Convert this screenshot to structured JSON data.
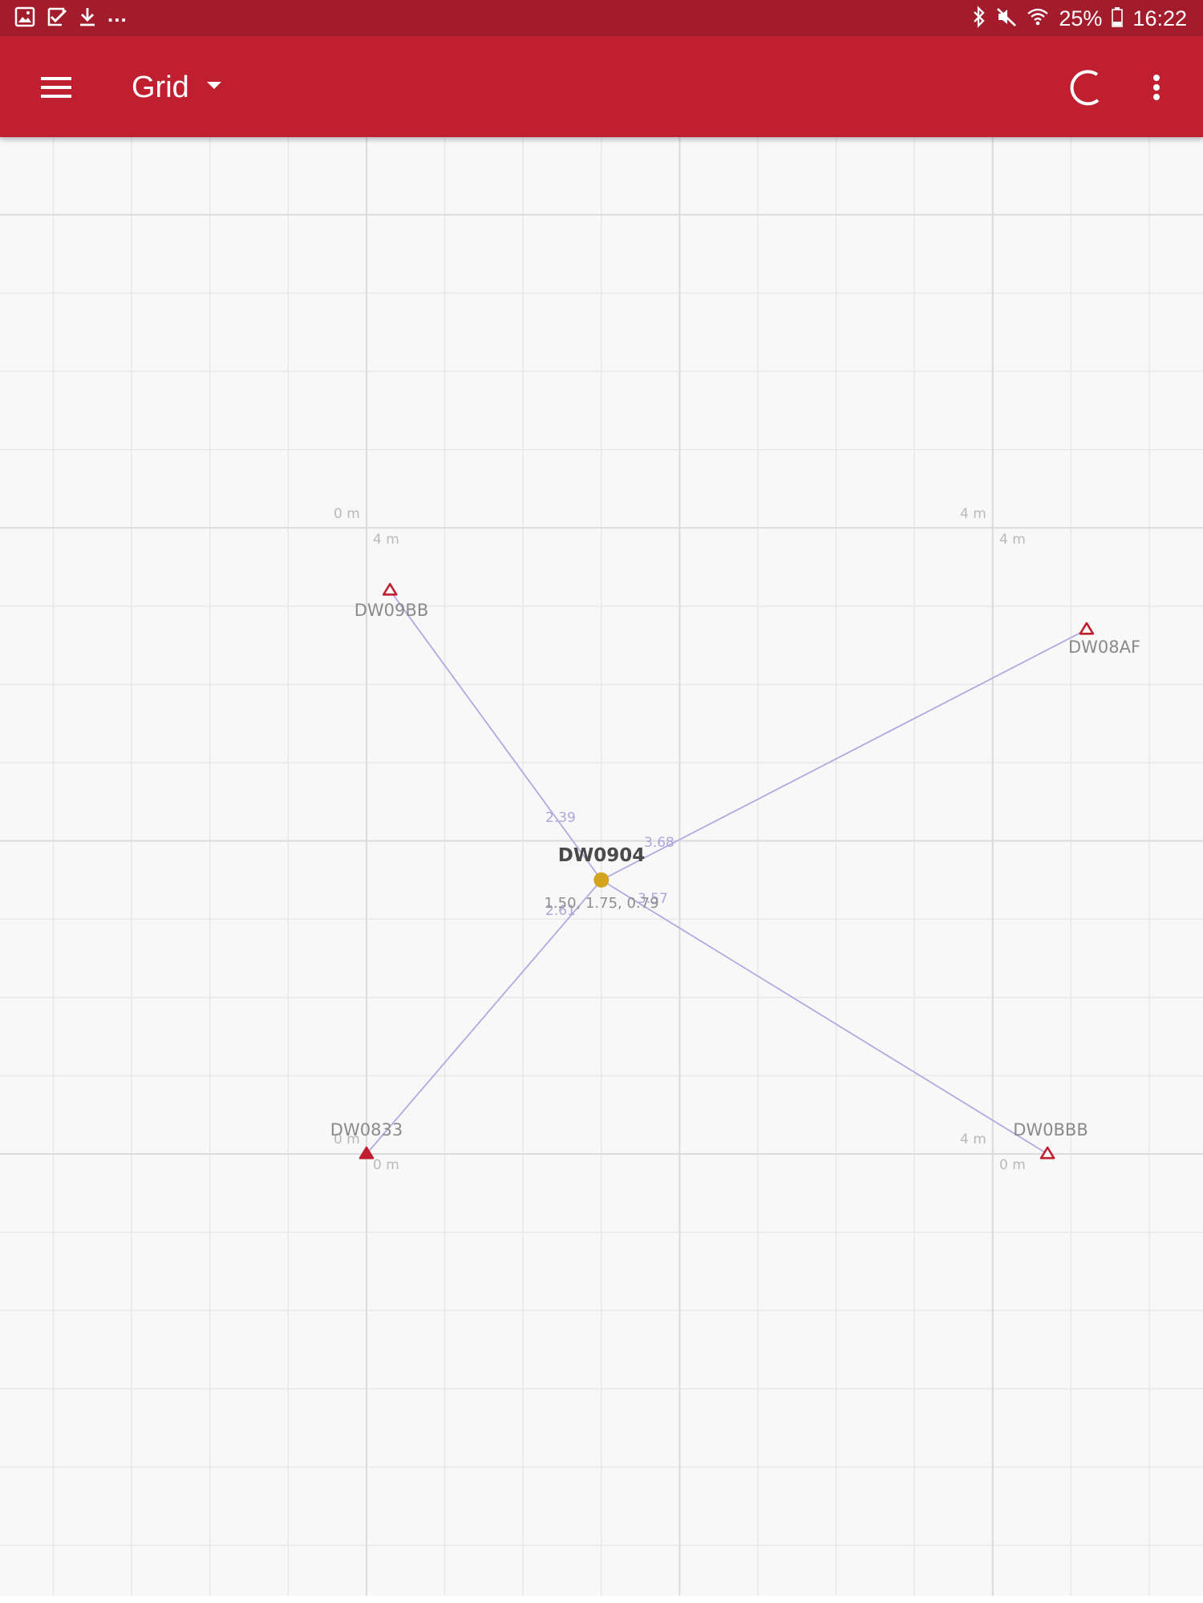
{
  "status_bar": {
    "more_indicator": "...",
    "battery_text": "25%",
    "time": "16:22",
    "icons": [
      "gallery-icon",
      "checkbox-icon",
      "download-icon",
      "bluetooth-icon",
      "mute-icon",
      "wifi-icon",
      "battery-icon"
    ]
  },
  "app_bar": {
    "title": "Grid",
    "icons": [
      "menu-icon",
      "dropdown-arrow-icon",
      "refresh-icon",
      "more-vert-icon"
    ]
  },
  "colors": {
    "status_bar": "#a21c2c",
    "app_bar": "#c01f2f",
    "grid_background": "#f8f8f8",
    "grid_line": "#e7e7e7",
    "anchor": "#c01f2f",
    "tag": "#d4a51c",
    "link": "#b1aae0"
  },
  "grid": {
    "corner_labels": [
      {
        "id": "tl-a",
        "text": "0 m"
      },
      {
        "id": "tl-b",
        "text": "4 m"
      },
      {
        "id": "tr-a",
        "text": "4 m"
      },
      {
        "id": "tr-b",
        "text": "4 m"
      },
      {
        "id": "bl-a",
        "text": "0 m"
      },
      {
        "id": "bl-b",
        "text": "0 m"
      },
      {
        "id": "br-a",
        "text": "4 m"
      },
      {
        "id": "br-b",
        "text": "0 m"
      }
    ]
  },
  "anchors": [
    {
      "id": "DW09BB",
      "label": "DW09BB",
      "x": 0.15,
      "y": 3.6,
      "filled": false
    },
    {
      "id": "DW08AF",
      "label": "DW08AF",
      "x": 4.6,
      "y": 3.35,
      "filled": false
    },
    {
      "id": "DW0833",
      "label": "DW0833",
      "x": 0.0,
      "y": 0.0,
      "filled": true
    },
    {
      "id": "DW0BBB",
      "label": "DW0BBB",
      "x": 4.35,
      "y": 0.0,
      "filled": false
    }
  ],
  "tag": {
    "id": "DW0904",
    "label": "DW0904",
    "position_text": "1.50, 1.75, 0.79",
    "x": 1.5,
    "y": 1.75,
    "z": 0.79
  },
  "distances": [
    {
      "anchor": "DW09BB",
      "value": "2.39"
    },
    {
      "anchor": "DW08AF",
      "value": "3.68"
    },
    {
      "anchor": "DW0BBB",
      "value": "3.57"
    },
    {
      "anchor": "DW0833",
      "value": "2.61"
    }
  ]
}
